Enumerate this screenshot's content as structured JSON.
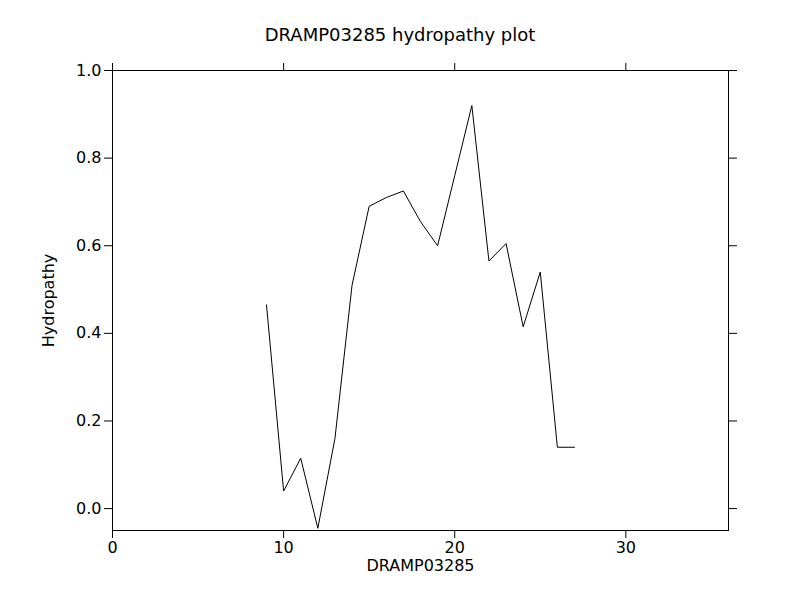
{
  "chart_data": {
    "type": "line",
    "title": "DRAMP03285 hydropathy plot",
    "x_label": "DRAMP03285",
    "y_label": "Hydropathy",
    "x": [
      9,
      10,
      11,
      12,
      13,
      14,
      15,
      16,
      17,
      18,
      19,
      20,
      21,
      22,
      23,
      24,
      25,
      26,
      27
    ],
    "values": [
      0.465,
      0.04,
      0.115,
      -0.045,
      0.16,
      0.51,
      0.69,
      0.71,
      0.725,
      0.655,
      0.6,
      0.76,
      0.92,
      0.565,
      0.605,
      0.415,
      0.54,
      0.14,
      0.14
    ],
    "color": "#000000",
    "xlim": [
      0,
      36
    ],
    "xticks": [
      0,
      10,
      20,
      30
    ],
    "ylim": [
      -0.05,
      1.0
    ],
    "yticks": [
      {
        "value": 0,
        "label": "0.0"
      },
      0.2,
      0.4,
      0.6,
      0.8,
      {
        "value": 1,
        "label": "1.0"
      }
    ],
    "grid": false
  }
}
